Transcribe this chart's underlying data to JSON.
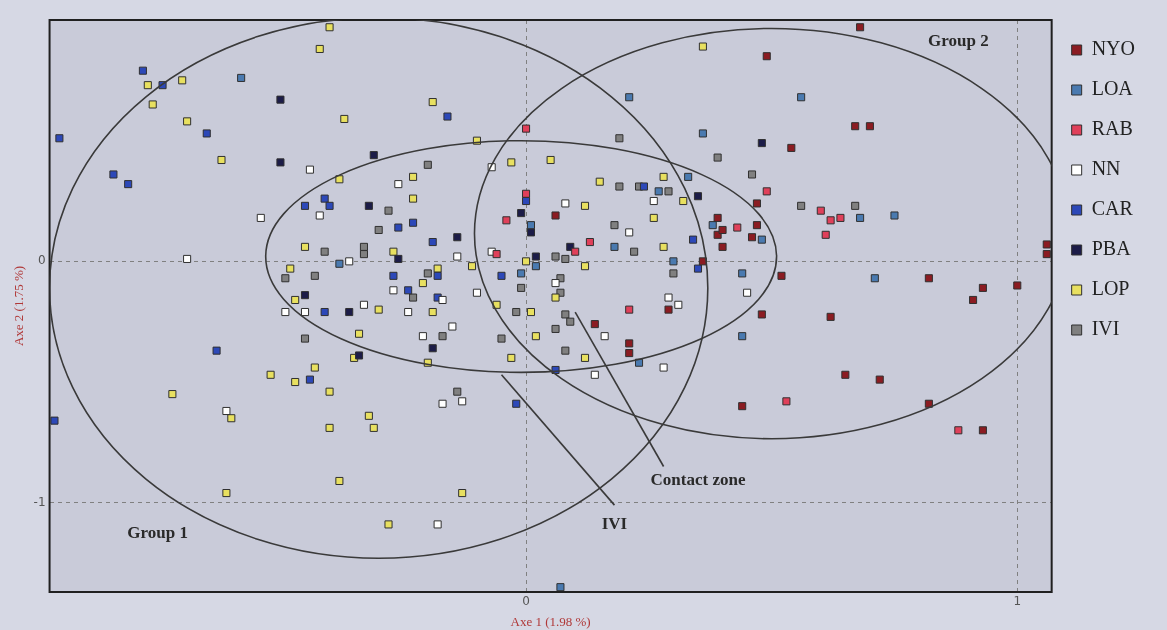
{
  "chart_data": {
    "type": "scatter",
    "xlabel": "Axe 1 (1.98 %)",
    "ylabel": "Axe 2 (1.75 %)",
    "xlim": [
      -0.97,
      1.07
    ],
    "ylim": [
      -1.37,
      1.0
    ],
    "xticks": [
      0,
      1
    ],
    "yticks": [
      -1,
      0
    ],
    "grid": true,
    "legend": "right",
    "marker": "square",
    "annotations": [
      "Group 1",
      "Group 2",
      "Contact zone",
      "IVI"
    ],
    "series": [
      {
        "name": "NYO",
        "color": "#8b1c22",
        "x": [
          0.68,
          0.49,
          0.67,
          0.7,
          0.54,
          0.47,
          0.39,
          0.47,
          0.39,
          0.4,
          0.46,
          0.4,
          0.52,
          0.82,
          0.93,
          0.91,
          1.0,
          1.06,
          1.06,
          0.48,
          0.62,
          0.65,
          0.72,
          0.44,
          0.82,
          0.93,
          0.06,
          0.36,
          0.29,
          0.14,
          0.21,
          0.21
        ],
        "values": [
          0.97,
          0.85,
          0.56,
          0.56,
          0.47,
          0.24,
          0.18,
          0.15,
          0.11,
          0.13,
          0.1,
          0.06,
          -0.06,
          -0.07,
          -0.11,
          -0.16,
          -0.1,
          0.07,
          0.03,
          -0.22,
          -0.23,
          -0.47,
          -0.49,
          -0.6,
          -0.59,
          -0.7,
          0.19,
          0.0,
          -0.2,
          -0.26,
          -0.34,
          -0.38
        ]
      },
      {
        "name": "LOA",
        "color": "#4a7ab0",
        "x": [
          -0.58,
          -0.38,
          0.21,
          0.36,
          0.33,
          0.27,
          0.01,
          0.18,
          0.3,
          0.02,
          -0.01,
          0.38,
          0.56,
          0.68,
          0.75,
          0.48,
          0.44,
          0.71,
          0.44,
          0.07,
          0.23
        ],
        "values": [
          0.76,
          -0.01,
          0.68,
          0.53,
          0.35,
          0.29,
          0.15,
          0.06,
          0.0,
          -0.02,
          -0.05,
          0.15,
          0.68,
          0.18,
          0.19,
          0.09,
          -0.05,
          -0.07,
          -0.31,
          -1.35,
          -0.42
        ]
      },
      {
        "name": "RAB",
        "color": "#e0405a",
        "x": [
          0.0,
          0.0,
          -0.04,
          0.13,
          0.1,
          -0.06,
          0.21,
          0.49,
          0.6,
          0.62,
          0.64,
          0.61,
          0.43,
          0.53,
          0.88
        ],
        "values": [
          0.55,
          0.28,
          0.17,
          0.08,
          0.04,
          0.03,
          -0.2,
          0.29,
          0.21,
          0.17,
          0.18,
          0.11,
          0.14,
          -0.58,
          -0.7
        ]
      },
      {
        "name": "NN",
        "color": "#ffffff",
        "x": [
          -0.44,
          -0.54,
          -0.69,
          -0.42,
          -0.36,
          -0.49,
          -0.45,
          -0.33,
          -0.07,
          -0.26,
          0.08,
          0.26,
          0.21,
          -0.07,
          -0.14,
          -0.27,
          -0.17,
          -0.1,
          0.06,
          -0.24,
          0.29,
          0.31,
          0.45,
          -0.61,
          -0.15,
          -0.21,
          0.16,
          0.28,
          0.14,
          -0.17,
          -0.13,
          -0.18
        ],
        "values": [
          0.38,
          0.18,
          0.01,
          0.19,
          0.0,
          -0.21,
          -0.21,
          -0.18,
          0.39,
          0.32,
          0.24,
          0.25,
          0.12,
          0.04,
          0.02,
          -0.12,
          -0.16,
          -0.13,
          -0.09,
          -0.21,
          -0.15,
          -0.18,
          -0.13,
          -0.62,
          -0.27,
          -0.31,
          -0.31,
          -0.44,
          -0.47,
          -0.59,
          -0.58,
          -1.09
        ]
      },
      {
        "name": "CAR",
        "color": "#2c48b8",
        "x": [
          -0.78,
          -0.74,
          -0.65,
          -0.95,
          -0.84,
          -0.81,
          -0.45,
          -0.41,
          -0.4,
          -0.41,
          -0.16,
          0.0,
          -0.26,
          -0.23,
          -0.19,
          -0.27,
          -0.24,
          -0.18,
          -0.18,
          -0.05,
          0.35,
          0.34,
          -0.63,
          -0.96,
          -0.44,
          -0.02,
          0.06,
          0.24
        ],
        "values": [
          0.79,
          0.73,
          0.53,
          0.51,
          0.36,
          0.32,
          0.23,
          0.26,
          0.23,
          -0.21,
          0.6,
          0.25,
          0.14,
          0.16,
          0.08,
          -0.06,
          -0.12,
          -0.06,
          -0.15,
          -0.06,
          -0.03,
          0.09,
          -0.37,
          -0.66,
          -0.49,
          -0.59,
          -0.45,
          0.31
        ]
      },
      {
        "name": "PBA",
        "color": "#1c1c48",
        "x": [
          -0.5,
          -0.5,
          -0.31,
          -0.32,
          -0.45,
          -0.36,
          -0.01,
          0.01,
          -0.14,
          -0.26,
          0.02,
          0.09,
          0.35,
          0.48,
          -0.34,
          -0.19
        ],
        "values": [
          0.67,
          0.41,
          0.44,
          0.23,
          -0.14,
          -0.21,
          0.2,
          0.12,
          0.1,
          0.01,
          0.02,
          0.06,
          0.27,
          0.49,
          -0.39,
          -0.36
        ]
      },
      {
        "name": "LOP",
        "color": "#e8e060",
        "x": [
          -0.4,
          -0.42,
          -0.77,
          -0.7,
          -0.76,
          -0.69,
          -0.37,
          -0.62,
          -0.38,
          -0.45,
          -0.48,
          -0.47,
          -0.3,
          0.36,
          -0.19,
          -0.1,
          -0.03,
          0.05,
          -0.23,
          -0.23,
          0.15,
          0.28,
          0.12,
          0.26,
          0.32,
          -0.27,
          -0.18,
          -0.21,
          -0.11,
          0.0,
          0.12,
          0.28,
          0.06,
          -0.19,
          -0.06,
          0.01,
          -0.34,
          -0.35,
          -0.43,
          -0.52,
          -0.47,
          -0.4,
          -0.72,
          -0.32,
          -0.31,
          -0.4,
          -0.38,
          -0.61,
          -0.6,
          0.02,
          -0.03,
          0.12,
          -0.2,
          -0.13,
          -0.28
        ],
        "values": [
          0.97,
          0.88,
          0.73,
          0.75,
          0.65,
          0.58,
          0.59,
          0.42,
          0.34,
          0.06,
          -0.03,
          -0.16,
          -0.2,
          0.89,
          0.66,
          0.5,
          0.41,
          0.42,
          0.35,
          0.26,
          0.33,
          0.35,
          0.23,
          0.18,
          0.25,
          0.04,
          -0.03,
          -0.09,
          -0.02,
          0.0,
          -0.02,
          0.06,
          -0.15,
          -0.21,
          -0.18,
          -0.21,
          -0.3,
          -0.4,
          -0.44,
          -0.47,
          -0.5,
          -0.54,
          -0.55,
          -0.64,
          -0.69,
          -0.69,
          -0.91,
          -0.96,
          -0.65,
          -0.31,
          -0.4,
          -0.4,
          -0.42,
          -0.96,
          -1.09
        ]
      },
      {
        "name": "IVI",
        "color": "#808080",
        "x": [
          -0.3,
          -0.41,
          -0.33,
          -0.33,
          -0.49,
          -0.43,
          -0.45,
          -0.2,
          -0.28,
          -0.2,
          -0.23,
          0.19,
          0.19,
          0.23,
          0.29,
          0.18,
          0.22,
          0.06,
          0.08,
          0.07,
          0.07,
          -0.01,
          0.3,
          -0.02,
          0.08,
          0.39,
          0.46,
          0.56,
          0.67,
          0.09,
          -0.17,
          -0.05,
          0.06,
          0.08,
          -0.14
        ],
        "values": [
          0.13,
          0.04,
          0.06,
          0.03,
          -0.07,
          -0.06,
          -0.32,
          0.4,
          0.21,
          -0.05,
          -0.15,
          0.51,
          0.31,
          0.31,
          0.29,
          0.15,
          0.04,
          0.02,
          0.01,
          -0.07,
          -0.13,
          -0.11,
          -0.05,
          -0.21,
          -0.22,
          0.43,
          0.36,
          0.23,
          0.23,
          -0.25,
          -0.31,
          -0.32,
          -0.28,
          -0.37,
          -0.54
        ]
      }
    ]
  }
}
